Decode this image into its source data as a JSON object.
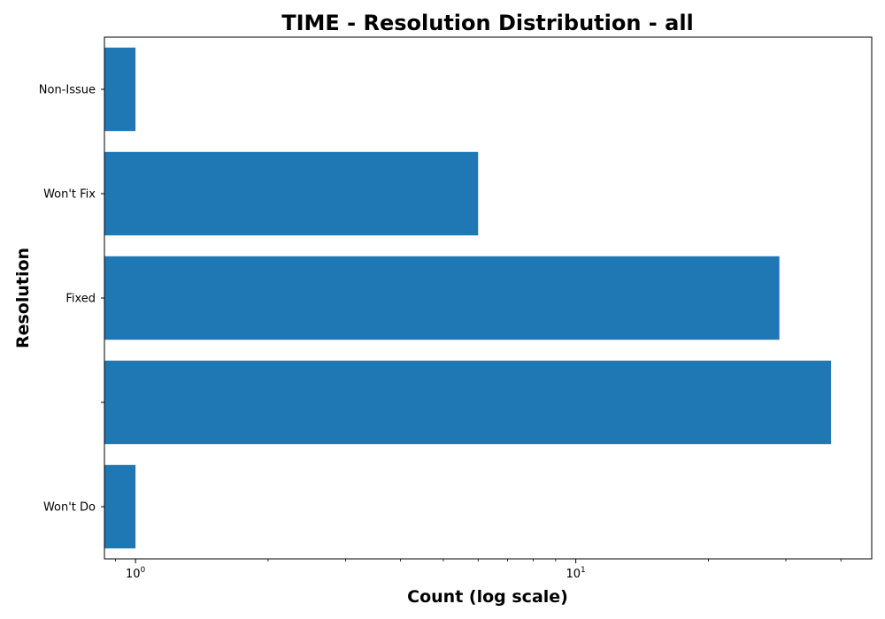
{
  "chart_data": {
    "type": "bar",
    "orientation": "horizontal",
    "title": "TIME - Resolution Distribution - all",
    "xlabel": "Count (log scale)",
    "ylabel": "Resolution",
    "x_scale": "log",
    "xlim": [
      0.85,
      47
    ],
    "x_ticks": [
      {
        "value": 1,
        "base": "10",
        "exp": "0"
      },
      {
        "value": 10,
        "base": "10",
        "exp": "1"
      }
    ],
    "categories": [
      "Won't Do",
      "",
      "Fixed",
      "Won't Fix",
      "Non-Issue"
    ],
    "values": [
      1,
      38,
      29,
      6,
      1
    ],
    "bar_color": "#1f77b4",
    "grid": false,
    "legend": "none"
  }
}
